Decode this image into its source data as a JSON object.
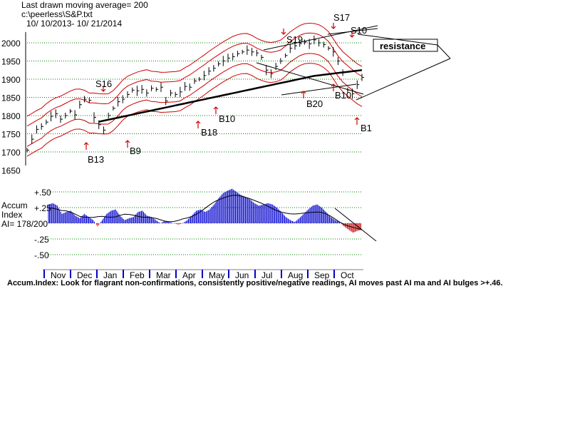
{
  "header": {
    "line1": "Last drawn moving average= 200",
    "line2": "c:\\peerless\\S&P.txt",
    "line3": "10/ 10/2013- 10/ 21/2014"
  },
  "price_panel": {
    "y_ticks": [
      "2000",
      "1950",
      "1900",
      "1850",
      "1800",
      "1750",
      "1700",
      "1650"
    ],
    "signals": [
      {
        "label": "S16",
        "dir": "down"
      },
      {
        "label": "S19",
        "dir": "down"
      },
      {
        "label": "S17",
        "dir": "down"
      },
      {
        "label": "S10",
        "dir": "down"
      },
      {
        "label": "B13",
        "dir": "up"
      },
      {
        "label": "B9",
        "dir": "up"
      },
      {
        "label": "B18",
        "dir": "up"
      },
      {
        "label": "B10",
        "dir": "up"
      },
      {
        "label": "B20",
        "dir": "up"
      },
      {
        "label": "B10",
        "dir": "up"
      },
      {
        "label": "B1",
        "dir": "up"
      }
    ],
    "annotation": "resistance"
  },
  "accum_panel": {
    "title_line1": "Accum",
    "title_line2": "Index",
    "title_line3": "AI= 178/200",
    "y_ticks": [
      "+.50",
      "+.25",
      "-.25",
      "-.50"
    ]
  },
  "months": [
    "Nov",
    "Dec",
    "Jan",
    "Feb",
    "Mar",
    "Apr",
    "May",
    "Jun",
    "Jul",
    "Aug",
    "Sep",
    "Oct"
  ],
  "caption": "Accum.Index: Look for flagrant non-confirmations, consistently positive/negative readings, AI moves past AI ma and AI bulges >+.46.",
  "colors": {
    "price_bars": "#000000",
    "bands": "#cc0000",
    "ma200": "#000000",
    "grid": "#008000",
    "signal_arrows": "#cc0000",
    "ai_positive": "#0000cc",
    "ai_negative": "#cc0000"
  },
  "chart_data": {
    "type": "line",
    "ylim": [
      1650,
      2030
    ],
    "series": [
      {
        "values": [
          1705,
          1735,
          1762,
          1770,
          1782,
          1798,
          1805,
          1790,
          1800,
          1812,
          1802,
          1830,
          1845,
          1842,
          1795,
          1775,
          1760,
          1800,
          1820,
          1838,
          1845,
          1858,
          1870,
          1868,
          1872,
          1862,
          1875,
          1872,
          1878,
          1840,
          1862,
          1858,
          1865,
          1880,
          1878,
          1895,
          1900,
          1910,
          1922,
          1930,
          1942,
          1950,
          1958,
          1962,
          1970,
          1975,
          1980,
          1975,
          1972,
          1960,
          1925,
          1915,
          1935,
          1950,
          1965,
          1985,
          1992,
          1998,
          2002,
          1997,
          2008,
          2000,
          1995,
          1985,
          1975,
          1950,
          1918,
          1870,
          1860,
          1885,
          1905
        ]
      }
    ],
    "accum_index": {
      "ylim": [
        -0.6,
        0.6
      ],
      "values": [
        0.3,
        0.32,
        0.28,
        0.15,
        0.18,
        0.2,
        0.12,
        0.08,
        0.15,
        0.1,
        0.05,
        -0.05,
        0.05,
        0.15,
        0.2,
        0.22,
        0.12,
        0.05,
        0.08,
        0.1,
        0.18,
        0.2,
        0.12,
        0.1,
        0.05,
        0.0,
        0.04,
        0.02,
        0.0,
        -0.02,
        0.0,
        0.05,
        0.12,
        0.2,
        0.22,
        0.18,
        0.22,
        0.3,
        0.4,
        0.48,
        0.52,
        0.55,
        0.5,
        0.45,
        0.42,
        0.38,
        0.32,
        0.28,
        0.3,
        0.32,
        0.3,
        0.25,
        0.18,
        0.1,
        0.05,
        0.02,
        0.08,
        0.15,
        0.22,
        0.28,
        0.3,
        0.25,
        0.18,
        0.1,
        0.05,
        0.02,
        -0.05,
        -0.1,
        -0.15,
        -0.12,
        -0.1
      ]
    }
  }
}
